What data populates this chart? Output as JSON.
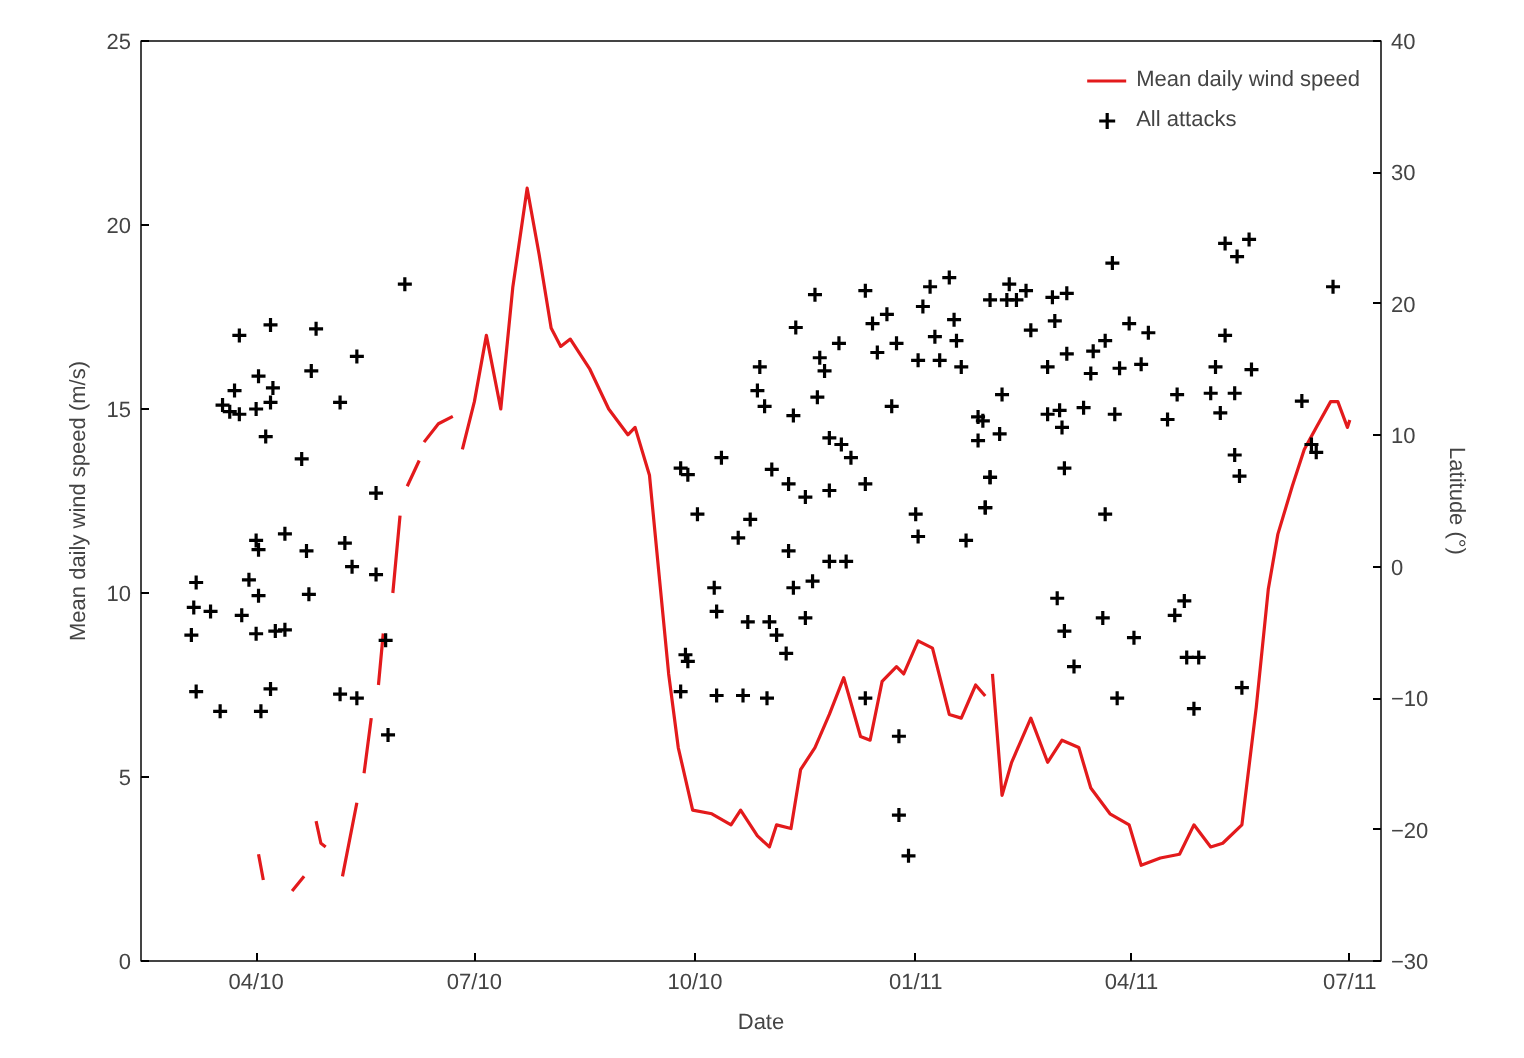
{
  "chart_data": {
    "type": "line",
    "xlabel": "Date",
    "ylabel": "Mean daily wind speed (m/s)",
    "y2label": "Latitude (°)",
    "xlim": [
      "2010-02-12",
      "2011-07-14"
    ],
    "xticks": [
      {
        "value": "2010-04-01",
        "label": "04/10"
      },
      {
        "value": "2010-07-01",
        "label": "07/10"
      },
      {
        "value": "2010-10-01",
        "label": "10/10"
      },
      {
        "value": "2011-01-01",
        "label": "01/11"
      },
      {
        "value": "2011-04-01",
        "label": "04/11"
      },
      {
        "value": "2011-07-01",
        "label": "07/11"
      }
    ],
    "ylim": [
      0,
      25
    ],
    "yticks": [
      0,
      5,
      10,
      15,
      20,
      25
    ],
    "y2lim": [
      -30,
      40
    ],
    "y2ticks": [
      -30,
      -20,
      -10,
      0,
      10,
      20,
      30,
      40
    ],
    "grid": false,
    "legend": "top right",
    "series": [
      {
        "name": "Mean daily wind speed",
        "color": "#e31a1c",
        "line_style": "solid",
        "marker": "none",
        "x": [
          "2010-04-02",
          "2010-04-04",
          "2010-04-10",
          "2010-04-16",
          "2010-04-21",
          "2010-04-22",
          "2010-04-26",
          "2010-04-28",
          "2010-04-30",
          "2010-05-04",
          "2010-05-07",
          "2010-05-13",
          "2010-05-14",
          "2010-05-16",
          "2010-05-19",
          "2010-05-20",
          "2010-05-22",
          "2010-05-24",
          "2010-05-26",
          "2010-05-28",
          "2010-05-31",
          "2010-06-02",
          "2010-06-03",
          "2010-06-08",
          "2010-06-09",
          "2010-06-10",
          "2010-06-16",
          "2010-06-22",
          "2010-06-24",
          "2010-06-26",
          "2010-07-01",
          "2010-07-06",
          "2010-07-12",
          "2010-07-17",
          "2010-07-23",
          "2010-07-28",
          "2010-08-02",
          "2010-08-06",
          "2010-08-10",
          "2010-08-18",
          "2010-08-26",
          "2010-09-03",
          "2010-09-06",
          "2010-09-12",
          "2010-09-16",
          "2010-09-20",
          "2010-09-24",
          "2010-09-30",
          "2010-10-08",
          "2010-10-16",
          "2010-10-20",
          "2010-10-27",
          "2010-11-01",
          "2010-11-04",
          "2010-11-10",
          "2010-11-14",
          "2010-11-20",
          "2010-11-26",
          "2010-12-02",
          "2010-12-09",
          "2010-12-13",
          "2010-12-18",
          "2010-12-24",
          "2010-12-27",
          "2011-01-02",
          "2011-01-08",
          "2011-01-15",
          "2011-01-20",
          "2011-01-26",
          "2011-01-30",
          "2011-02-01",
          "2011-02-02",
          "2011-02-06",
          "2011-02-10",
          "2011-02-18",
          "2011-02-25",
          "2011-03-03",
          "2011-03-10",
          "2011-03-15",
          "2011-03-23",
          "2011-03-31",
          "2011-04-05",
          "2011-04-13",
          "2011-04-21",
          "2011-04-27",
          "2011-05-04",
          "2011-05-09",
          "2011-05-17",
          "2011-05-23",
          "2011-05-28",
          "2011-06-01",
          "2011-06-07",
          "2011-06-12",
          "2011-06-17",
          "2011-06-23",
          "2011-06-26",
          "2011-06-30",
          "2011-07-01"
        ],
        "values": [
          2.9,
          2.2,
          null,
          1.9,
          2.3,
          null,
          3.8,
          3.2,
          3.1,
          null,
          2.3,
          4.3,
          null,
          5.1,
          6.6,
          null,
          7.5,
          8.9,
          null,
          10.0,
          12.1,
          null,
          12.9,
          13.6,
          null,
          14.1,
          14.6,
          14.8,
          null,
          13.9,
          15.2,
          17.0,
          15.0,
          18.3,
          21.0,
          19.2,
          17.2,
          16.7,
          16.9,
          16.1,
          15.0,
          14.3,
          14.5,
          13.2,
          10.5,
          7.8,
          5.8,
          4.1,
          4.0,
          3.7,
          4.1,
          3.4,
          3.1,
          3.7,
          3.6,
          5.2,
          5.8,
          6.7,
          7.7,
          6.1,
          6.0,
          7.6,
          8.0,
          7.8,
          8.7,
          8.5,
          6.7,
          6.6,
          7.5,
          7.2,
          null,
          7.8,
          4.5,
          5.4,
          6.6,
          5.4,
          6.0,
          5.8,
          4.7,
          4.0,
          3.7,
          2.6,
          2.8,
          2.9,
          3.7,
          3.1,
          3.2,
          3.7,
          6.9,
          10.1,
          11.6,
          12.9,
          13.9,
          14.5,
          15.2,
          15.2,
          14.5,
          14.7
        ]
      },
      {
        "name": "All attacks",
        "type": "scatter",
        "axis": "y2",
        "color": "#000000",
        "marker": "cross",
        "x": [
          "2010-03-05",
          "2010-03-07",
          "2010-03-06",
          "2010-03-07",
          "2010-03-13",
          "2010-03-17",
          "2010-03-18",
          "2010-03-21",
          "2010-03-23",
          "2010-03-25",
          "2010-03-25",
          "2010-03-26",
          "2010-03-29",
          "2010-04-01",
          "2010-04-02",
          "2010-04-01",
          "2010-04-02",
          "2010-04-01",
          "2010-04-02",
          "2010-04-03",
          "2010-04-05",
          "2010-04-07",
          "2010-04-07",
          "2010-04-08",
          "2010-04-07",
          "2010-04-09",
          "2010-04-13",
          "2010-04-13",
          "2010-04-20",
          "2010-04-22",
          "2010-04-24",
          "2010-04-26",
          "2010-04-23",
          "2010-05-06",
          "2010-05-08",
          "2010-05-11",
          "2010-05-13",
          "2010-05-06",
          "2010-05-13",
          "2010-05-21",
          "2010-05-21",
          "2010-05-25",
          "2010-05-26",
          "2010-06-02",
          "2010-09-25",
          "2010-09-28",
          "2010-09-27",
          "2010-09-28",
          "2010-09-25",
          "2010-10-02",
          "2010-10-09",
          "2010-10-10",
          "2010-10-10",
          "2010-10-12",
          "2010-10-19",
          "2010-10-21",
          "2010-10-23",
          "2010-10-24",
          "2010-10-27",
          "2010-10-28",
          "2010-10-30",
          "2010-10-31",
          "2010-11-02",
          "2010-11-01",
          "2010-11-04",
          "2010-11-08",
          "2010-11-09",
          "2010-11-09",
          "2010-11-11",
          "2010-11-11",
          "2010-11-12",
          "2010-11-16",
          "2010-11-16",
          "2010-11-20",
          "2010-11-19",
          "2010-11-22",
          "2010-11-24",
          "2010-11-21",
          "2010-11-26",
          "2010-11-26",
          "2010-11-26",
          "2010-11-30",
          "2010-12-01",
          "2010-12-03",
          "2010-12-05",
          "2010-12-11",
          "2010-12-11",
          "2010-12-11",
          "2010-12-14",
          "2010-12-16",
          "2010-12-20",
          "2010-12-22",
          "2010-12-24",
          "2010-12-25",
          "2010-12-25",
          "2010-12-29",
          "2011-01-01",
          "2011-01-02",
          "2011-01-04",
          "2011-01-02",
          "2011-01-07",
          "2011-01-09",
          "2011-01-11",
          "2011-01-15",
          "2011-01-17",
          "2011-01-18",
          "2011-01-20",
          "2011-01-22",
          "2011-01-27",
          "2011-01-30",
          "2011-02-01",
          "2011-02-01",
          "2011-01-29",
          "2011-01-27",
          "2011-01-30",
          "2011-02-01",
          "2011-02-05",
          "2011-02-06",
          "2011-02-08",
          "2011-02-09",
          "2011-02-12",
          "2011-02-16",
          "2011-02-18",
          "2011-02-27",
          "2011-02-28",
          "2011-02-25",
          "2011-02-25",
          "2011-03-02",
          "2011-03-05",
          "2011-03-05",
          "2011-03-04",
          "2011-03-03",
          "2011-03-01",
          "2011-03-04",
          "2011-03-08",
          "2011-03-12",
          "2011-03-15",
          "2011-03-16",
          "2011-03-20",
          "2011-03-21",
          "2011-03-21",
          "2011-03-24",
          "2011-03-25",
          "2011-03-26",
          "2011-03-27",
          "2011-03-31",
          "2011-04-02",
          "2011-04-05",
          "2011-04-08",
          "2011-04-16",
          "2011-04-20",
          "2011-04-19",
          "2011-04-23",
          "2011-04-24",
          "2011-04-27",
          "2011-04-29",
          "2011-05-04",
          "2011-05-06",
          "2011-05-08",
          "2011-05-10",
          "2011-05-14",
          "2011-05-10",
          "2011-05-15",
          "2011-05-20",
          "2011-05-21",
          "2011-05-14",
          "2011-05-16",
          "2011-05-17",
          "2011-06-11",
          "2011-06-15",
          "2011-06-17",
          "2011-06-24"
        ],
        "values": [
          -5.2,
          -1.2,
          -3.1,
          -9.5,
          -3.4,
          -11.0,
          12.3,
          11.8,
          13.4,
          17.6,
          11.6,
          -3.7,
          -1.0,
          12.0,
          14.5,
          2.0,
          1.3,
          -5.1,
          -2.2,
          -11.0,
          9.9,
          18.4,
          12.5,
          13.6,
          -9.3,
          -4.9,
          -4.8,
          2.5,
          8.2,
          1.2,
          14.9,
          18.1,
          -2.1,
          12.5,
          1.8,
          0,
          16.0,
          -9.7,
          -10.0,
          5.6,
          -0.6,
          -5.6,
          -12.8,
          21.5,
          7.5,
          7.0,
          -6.7,
          -7.2,
          -9.5,
          4.0,
          -1.6,
          -3.4,
          -9.8,
          8.3,
          2.2,
          -9.8,
          -4.2,
          3.6,
          13.4,
          15.2,
          12.2,
          -10.0,
          7.4,
          -4.2,
          -5.2,
          -6.6,
          1.2,
          6.3,
          -1.6,
          11.5,
          18.2,
          5.3,
          -3.9,
          20.7,
          -1.1,
          15.9,
          14.9,
          12.9,
          9.8,
          5.8,
          0.4,
          17.0,
          9.3,
          0.4,
          8.3,
          21.0,
          6.3,
          -10.0,
          18.5,
          16.3,
          19.2,
          12.2,
          17.0,
          -12.9,
          -18.9,
          -22.0,
          4.0,
          2.3,
          19.8,
          15.7,
          21.3,
          17.5,
          15.7,
          22.0,
          18.8,
          17.2,
          15.2,
          2.0,
          11.4,
          4.5,
          6.8,
          20.3,
          11.1,
          9.6,
          4.5,
          6.8,
          10.1,
          13.1,
          20.3,
          21.5,
          20.3,
          21.0,
          18.0,
          20.5,
          18.7,
          15.2,
          11.6,
          11.9,
          20.8,
          16.2,
          7.5,
          10.6,
          -2.4,
          -4.9,
          -7.6,
          12.1,
          14.7,
          16.4,
          -3.9,
          4.0,
          17.2,
          23.1,
          11.6,
          -10.0,
          15.1,
          18.5,
          -5.4,
          15.4,
          17.8,
          11.2,
          13.1,
          -3.7,
          -2.6,
          -6.9,
          -10.8,
          -6.9,
          13.2,
          15.2,
          11.7,
          17.6,
          13.2,
          24.6,
          23.6,
          24.9,
          15.0,
          8.5,
          6.9,
          -9.2,
          12.6,
          9.3,
          8.7,
          21.3
        ]
      }
    ]
  }
}
